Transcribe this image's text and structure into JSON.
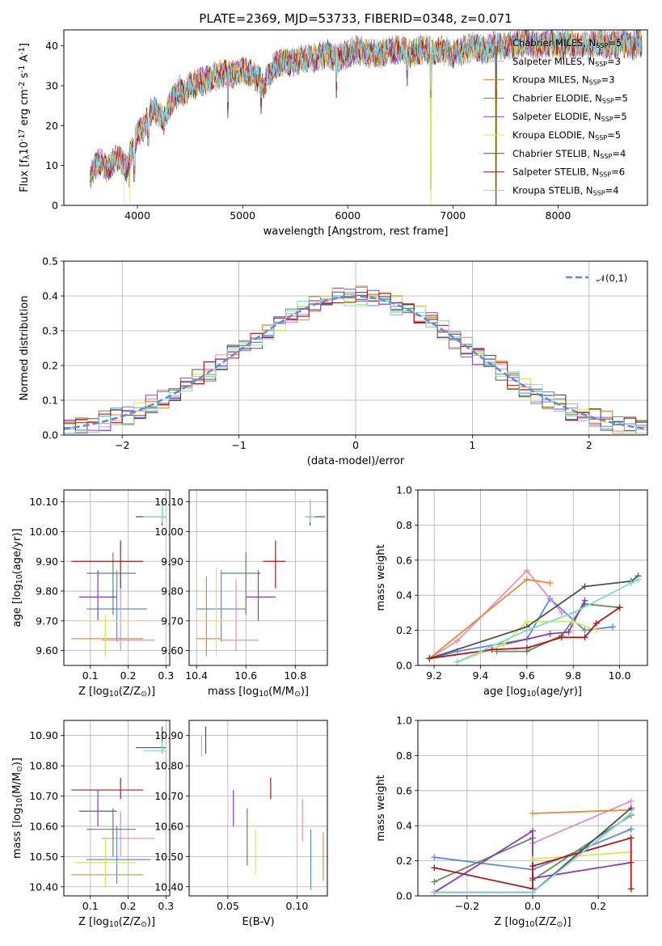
{
  "figure": {
    "title": "PLATE=2369, MJD=53733, FIBERID=0348, z=0.071"
  },
  "models": [
    {
      "name": "Chabrier MILES, N$_{SSP}$=5",
      "label": "Chabrier MILES, N",
      "sub": "SSP",
      "suffix": "=5",
      "color": "#5b8bd9"
    },
    {
      "name": "Salpeter MILES, N$_{SSP}$=3",
      "label": "Salpeter MILES, N",
      "sub": "SSP",
      "suffix": "=3",
      "color": "#e48ec0"
    },
    {
      "name": "Kroupa MILES, N$_{SSP}$=3",
      "label": "Kroupa MILES, N",
      "sub": "SSP",
      "suffix": "=3",
      "color": "#e88a2e"
    },
    {
      "name": "Chabrier ELODIE, N$_{SSP}$=5",
      "label": "Chabrier ELODIE, N",
      "sub": "SSP",
      "suffix": "=5",
      "color": "#5f8a5a"
    },
    {
      "name": "Salpeter ELODIE, N$_{SSP}$=5",
      "label": "Salpeter ELODIE, N",
      "sub": "SSP",
      "suffix": "=5",
      "color": "#8e3ab8"
    },
    {
      "name": "Kroupa ELODIE, N$_{SSP}$=5",
      "label": "Kroupa ELODIE, N",
      "sub": "SSP",
      "suffix": "=5",
      "color": "#d6e95c"
    },
    {
      "name": "Chabrier STELIB, N$_{SSP}$=4",
      "label": "Chabrier STELIB, N",
      "sub": "SSP",
      "suffix": "=4",
      "color": "#505050"
    },
    {
      "name": "Salpeter STELIB, N$_{SSP}$=6",
      "label": "Salpeter STELIB, N",
      "sub": "SSP",
      "suffix": "=6",
      "color": "#b01818"
    },
    {
      "name": "Kroupa STELIB, N$_{SSP}$=4",
      "label": "Kroupa STELIB, N",
      "sub": "SSP",
      "suffix": "=4",
      "color": "#7fd6df"
    }
  ],
  "chart_data": [
    {
      "id": "spectrum",
      "type": "line",
      "title": "PLATE=2369, MJD=53733, FIBERID=0348, z=0.071",
      "xlabel": "wavelength [Angstrom, rest frame]",
      "ylabel": "Flux [f$_\\lambda$10$^{-17}$ erg cm$^{-2}$ s$^{-1}$ A$^{-1}$]",
      "xlim": [
        3300,
        8850
      ],
      "ylim": [
        0,
        44
      ],
      "xticks": [
        4000,
        5000,
        6000,
        7000,
        8000
      ],
      "yticks": [
        0,
        10,
        20,
        30,
        40
      ],
      "grid": false,
      "legend_position": "right",
      "x": [
        3550,
        3600,
        3650,
        3700,
        3750,
        3800,
        3850,
        3900,
        3950,
        4000,
        4050,
        4100,
        4150,
        4200,
        4250,
        4300,
        4350,
        4400,
        4450,
        4500,
        4600,
        4700,
        4800,
        4900,
        5000,
        5100,
        5200,
        5300,
        5400,
        5500,
        5600,
        5700,
        5800,
        5900,
        6000,
        6100,
        6200,
        6300,
        6400,
        6500,
        6600,
        6700,
        6800,
        6900,
        7000,
        7100,
        7200,
        7300,
        7400,
        7500,
        7600,
        7700,
        7800,
        7900,
        8000,
        8100,
        8200,
        8300,
        8400,
        8500,
        8600,
        8700,
        8800
      ],
      "y": [
        7,
        10,
        11,
        9,
        10,
        12,
        11,
        9,
        14,
        18,
        19,
        22,
        24,
        23,
        21,
        25,
        27,
        29,
        28,
        30,
        31,
        32,
        33,
        33,
        34,
        33,
        30,
        35,
        36,
        36,
        37,
        37,
        38,
        37,
        38,
        39,
        38,
        38,
        39,
        39,
        38,
        39,
        39,
        39,
        38,
        39,
        40,
        39,
        40,
        40,
        40,
        41,
        40,
        41,
        40,
        41,
        40,
        40,
        41,
        40,
        41,
        40,
        41
      ],
      "dips": [
        {
          "x": 3920,
          "y": 0.5
        },
        {
          "x": 3970,
          "y": 6
        },
        {
          "x": 4102,
          "y": 15
        },
        {
          "x": 4861,
          "y": 22
        },
        {
          "x": 5175,
          "y": 23
        },
        {
          "x": 5893,
          "y": 27
        },
        {
          "x": 6563,
          "y": 30
        },
        {
          "x": 6790,
          "y": 0
        },
        {
          "x": 7410,
          "y": 0
        }
      ]
    },
    {
      "id": "residual-histogram",
      "type": "histogram",
      "xlabel": "(data-model)/error",
      "ylabel": "Normed distribution",
      "xlim": [
        -2.5,
        2.5
      ],
      "ylim": [
        0,
        0.5
      ],
      "xticks": [
        -2,
        -1,
        0,
        1,
        2
      ],
      "yticks": [
        0.0,
        0.1,
        0.2,
        0.3,
        0.4,
        0.5
      ],
      "grid": true,
      "legend_position": "top-right",
      "reference": {
        "label": "$\\mathcal{N}(0,1)$",
        "color": "#5b8bd9"
      },
      "bin_width": 0.1
    },
    {
      "id": "age-vs-Z",
      "type": "errorbar",
      "xlabel": "Z [log$_{10}$(Z/Z$_\\odot$)]",
      "ylabel": "age  [log$_{10}$(age/yr)]",
      "xlim": [
        0.03,
        0.31
      ],
      "ylim": [
        9.55,
        10.14
      ],
      "xticks": [
        0.1,
        0.2,
        0.3
      ],
      "yticks": [
        9.6,
        9.7,
        9.8,
        9.9,
        10.0,
        10.1
      ],
      "grid": true,
      "points": [
        {
          "m": 0,
          "x": 0.17,
          "y": 9.74,
          "xe": [
            0.09,
            0.25
          ],
          "ye": [
            9.63,
            9.87
          ]
        },
        {
          "m": 1,
          "x": 0.18,
          "y": 9.635,
          "xe": [
            0.13,
            0.27
          ],
          "ye": [
            9.6,
            9.84
          ]
        },
        {
          "m": 2,
          "x": 0.14,
          "y": 9.64,
          "xe": [
            0.05,
            0.24
          ],
          "ye": [
            9.58,
            9.7
          ]
        },
        {
          "m": 3,
          "x": 0.16,
          "y": 9.86,
          "xe": [
            0.09,
            0.22
          ],
          "ye": [
            9.72,
            9.93
          ]
        },
        {
          "m": 4,
          "x": 0.12,
          "y": 9.78,
          "xe": [
            0.07,
            0.17
          ],
          "ye": [
            9.7,
            9.87
          ]
        },
        {
          "m": 5,
          "x": 0.14,
          "y": 9.7,
          "xe": [
            0.06,
            0.22
          ],
          "ye": [
            9.58,
            9.72
          ]
        },
        {
          "m": 6,
          "x": 0.29,
          "y": 10.05,
          "xe": [
            0.22,
            0.3
          ],
          "ye": [
            10.02,
            10.1
          ]
        },
        {
          "m": 7,
          "x": 0.18,
          "y": 9.9,
          "xe": [
            0.05,
            0.24
          ],
          "ye": [
            9.81,
            9.97
          ]
        },
        {
          "m": 8,
          "x": 0.29,
          "y": 10.05,
          "xe": [
            0.24,
            0.3
          ],
          "ye": [
            10.03,
            10.11
          ]
        }
      ]
    },
    {
      "id": "age-vs-mass",
      "type": "errorbar",
      "xlabel": "mass [log$_{10}$(M/M$_\\odot$)]",
      "ylabel": "",
      "xlim": [
        10.37,
        10.93
      ],
      "ylim": [
        9.55,
        10.14
      ],
      "xticks": [
        10.4,
        10.6,
        10.8
      ],
      "yticks": [
        9.6,
        9.7,
        9.8,
        9.9,
        10.0,
        10.1
      ],
      "grid": true,
      "points": [
        {
          "m": 0,
          "x": 10.5,
          "y": 9.74,
          "xe": [
            10.4,
            10.6
          ],
          "ye": [
            9.63,
            9.87
          ]
        },
        {
          "m": 1,
          "x": 10.56,
          "y": 9.635,
          "xe": [
            10.5,
            10.65
          ],
          "ye": [
            9.6,
            9.84
          ]
        },
        {
          "m": 2,
          "x": 10.44,
          "y": 9.64,
          "xe": [
            10.4,
            10.5
          ],
          "ye": [
            9.58,
            9.85
          ]
        },
        {
          "m": 3,
          "x": 10.6,
          "y": 9.86,
          "xe": [
            10.5,
            10.66
          ],
          "ye": [
            9.72,
            9.93
          ]
        },
        {
          "m": 4,
          "x": 10.65,
          "y": 9.78,
          "xe": [
            10.6,
            10.72
          ],
          "ye": [
            9.7,
            9.87
          ]
        },
        {
          "m": 5,
          "x": 10.48,
          "y": 9.7,
          "xe": [
            10.4,
            10.56
          ],
          "ye": [
            9.58,
            9.88
          ]
        },
        {
          "m": 6,
          "x": 10.86,
          "y": 10.05,
          "xe": [
            10.84,
            10.92
          ],
          "ye": [
            10.02,
            10.1
          ]
        },
        {
          "m": 7,
          "x": 10.72,
          "y": 9.9,
          "xe": [
            10.67,
            10.76
          ],
          "ye": [
            9.81,
            9.97
          ]
        },
        {
          "m": 8,
          "x": 10.86,
          "y": 10.05,
          "xe": [
            10.84,
            10.88
          ],
          "ye": [
            10.03,
            10.11
          ]
        }
      ]
    },
    {
      "id": "mass-weight-vs-age",
      "type": "line",
      "xlabel": "age  [log$_{10}$(age/yr)]",
      "ylabel": "mass weight",
      "xlim": [
        9.13,
        10.12
      ],
      "ylim": [
        0,
        1.0
      ],
      "xticks": [
        9.2,
        9.4,
        9.6,
        9.8,
        10.0
      ],
      "yticks": [
        0.0,
        0.2,
        0.4,
        0.6,
        0.8,
        1.0
      ],
      "grid": true,
      "series": [
        {
          "m": 0,
          "x": [
            9.18,
            9.3,
            9.6,
            9.7,
            9.85,
            9.97
          ],
          "y": [
            0.04,
            0.08,
            0.15,
            0.38,
            0.2,
            0.22
          ]
        },
        {
          "m": 1,
          "x": [
            9.18,
            9.3,
            9.6,
            9.75
          ],
          "y": [
            0.04,
            0.14,
            0.54,
            0.3
          ]
        },
        {
          "m": 2,
          "x": [
            9.18,
            9.6,
            9.7
          ],
          "y": [
            0.04,
            0.49,
            0.47
          ]
        },
        {
          "m": 3,
          "x": [
            9.47,
            9.6,
            9.75,
            9.85,
            10.0
          ],
          "y": [
            0.08,
            0.08,
            0.17,
            0.35,
            0.33
          ]
        },
        {
          "m": 4,
          "x": [
            9.3,
            9.5,
            9.7,
            9.78,
            9.85
          ],
          "y": [
            0.02,
            0.12,
            0.18,
            0.19,
            0.37
          ]
        },
        {
          "m": 5,
          "x": [
            9.3,
            9.5,
            9.6,
            9.8,
            9.9
          ],
          "y": [
            0.02,
            0.12,
            0.25,
            0.25,
            0.2
          ]
        },
        {
          "m": 6,
          "x": [
            9.18,
            9.6,
            9.85,
            10.05,
            10.08
          ],
          "y": [
            0.04,
            0.22,
            0.45,
            0.48,
            0.51
          ]
        },
        {
          "m": 7,
          "x": [
            9.18,
            9.45,
            9.6,
            9.75,
            9.85,
            9.9,
            10.0
          ],
          "y": [
            0.04,
            0.09,
            0.1,
            0.16,
            0.16,
            0.24,
            0.33
          ]
        },
        {
          "m": 8,
          "x": [
            9.3,
            9.6,
            9.8,
            10.05,
            10.08
          ],
          "y": [
            0.02,
            0.2,
            0.3,
            0.47,
            0.49
          ]
        }
      ]
    },
    {
      "id": "mass-vs-Z",
      "type": "errorbar",
      "xlabel": "Z [log$_{10}$(Z/Z$_\\odot$)]",
      "ylabel": "mass [log$_{10}$(M/M$_\\odot$)]",
      "xlim": [
        0.03,
        0.31
      ],
      "ylim": [
        10.37,
        10.95
      ],
      "xticks": [
        0.1,
        0.2,
        0.3
      ],
      "yticks": [
        10.4,
        10.5,
        10.6,
        10.7,
        10.8,
        10.9
      ],
      "grid": true,
      "points": [
        {
          "m": 0,
          "x": 0.17,
          "y": 10.49,
          "xe": [
            0.09,
            0.26
          ],
          "ye": [
            10.41,
            10.6
          ]
        },
        {
          "m": 1,
          "x": 0.18,
          "y": 10.56,
          "xe": [
            0.13,
            0.27
          ],
          "ye": [
            10.5,
            10.65
          ]
        },
        {
          "m": 2,
          "x": 0.14,
          "y": 10.44,
          "xe": [
            0.05,
            0.24
          ],
          "ye": [
            10.4,
            10.5
          ]
        },
        {
          "m": 3,
          "x": 0.16,
          "y": 10.59,
          "xe": [
            0.09,
            0.22
          ],
          "ye": [
            10.5,
            10.66
          ]
        },
        {
          "m": 4,
          "x": 0.12,
          "y": 10.65,
          "xe": [
            0.07,
            0.17
          ],
          "ye": [
            10.6,
            10.72
          ]
        },
        {
          "m": 5,
          "x": 0.14,
          "y": 10.48,
          "xe": [
            0.06,
            0.22
          ],
          "ye": [
            10.4,
            10.56
          ]
        },
        {
          "m": 6,
          "x": 0.29,
          "y": 10.86,
          "xe": [
            0.22,
            0.3
          ],
          "ye": [
            10.84,
            10.93
          ]
        },
        {
          "m": 7,
          "x": 0.18,
          "y": 10.72,
          "xe": [
            0.05,
            0.24
          ],
          "ye": [
            10.69,
            10.76
          ]
        },
        {
          "m": 8,
          "x": 0.29,
          "y": 10.85,
          "xe": [
            0.24,
            0.3
          ],
          "ye": [
            10.84,
            10.88
          ]
        }
      ]
    },
    {
      "id": "mass-vs-EBV",
      "type": "errorbar",
      "xlabel": "E(B-V)",
      "ylabel": "",
      "xlim": [
        0.022,
        0.122
      ],
      "ylim": [
        10.37,
        10.95
      ],
      "xticks": [
        0.05,
        0.1
      ],
      "yticks": [
        10.4,
        10.5,
        10.6,
        10.7,
        10.8,
        10.9
      ],
      "grid": true,
      "points": [
        {
          "m": 0,
          "x": 0.11,
          "y": 10.49,
          "xe": [
            0.11,
            0.11
          ],
          "ye": [
            10.39,
            10.59
          ]
        },
        {
          "m": 1,
          "x": 0.104,
          "y": 10.61,
          "xe": [
            0.104,
            0.104
          ],
          "ye": [
            10.55,
            10.69
          ]
        },
        {
          "m": 2,
          "x": 0.119,
          "y": 10.49,
          "xe": [
            0.119,
            0.119
          ],
          "ye": [
            10.42,
            10.58
          ]
        },
        {
          "m": 3,
          "x": 0.064,
          "y": 10.56,
          "xe": [
            0.064,
            0.064
          ],
          "ye": [
            10.47,
            10.66
          ]
        },
        {
          "m": 4,
          "x": 0.054,
          "y": 10.66,
          "xe": [
            0.054,
            0.054
          ],
          "ye": [
            10.6,
            10.72
          ]
        },
        {
          "m": 5,
          "x": 0.07,
          "y": 10.51,
          "xe": [
            0.07,
            0.07
          ],
          "ye": [
            10.44,
            10.59
          ]
        },
        {
          "m": 6,
          "x": 0.034,
          "y": 10.88,
          "xe": [
            0.034,
            0.034
          ],
          "ye": [
            10.84,
            10.93
          ]
        },
        {
          "m": 7,
          "x": 0.081,
          "y": 10.72,
          "xe": [
            0.081,
            0.081
          ],
          "ye": [
            10.69,
            10.76
          ]
        },
        {
          "m": 8,
          "x": 0.031,
          "y": 10.86,
          "xe": [
            0.031,
            0.031
          ],
          "ye": [
            10.83,
            10.9
          ]
        }
      ]
    },
    {
      "id": "mass-weight-vs-Z",
      "type": "line",
      "xlabel": "Z [log$_{10}$(Z/Z$_\\odot$)]",
      "ylabel": "mass weight",
      "xlim": [
        -0.35,
        0.35
      ],
      "ylim": [
        0,
        1.0
      ],
      "xticks": [
        -0.2,
        0.0,
        0.2
      ],
      "yticks": [
        0.0,
        0.2,
        0.4,
        0.6,
        0.8,
        1.0
      ],
      "grid": true,
      "series": [
        {
          "m": 0,
          "x": [
            -0.3,
            0.0,
            0.3
          ],
          "y": [
            0.22,
            0.15,
            0.38
          ]
        },
        {
          "m": 1,
          "x": [
            0.0,
            0.3
          ],
          "y": [
            0.3,
            0.54
          ]
        },
        {
          "m": 2,
          "x": [
            0.0,
            0.3
          ],
          "y": [
            0.47,
            0.49
          ]
        },
        {
          "m": 3,
          "x": [
            -0.3,
            0.0,
            0.0,
            0.3
          ],
          "y": [
            0.08,
            0.33,
            0.09,
            0.46
          ]
        },
        {
          "m": 4,
          "x": [
            -0.3,
            0.0,
            0.0,
            0.3
          ],
          "y": [
            0.02,
            0.37,
            0.1,
            0.19
          ]
        },
        {
          "m": 5,
          "x": [
            0.0,
            0.3,
            0.3
          ],
          "y": [
            0.21,
            0.25,
            0.2
          ]
        },
        {
          "m": 6,
          "x": [
            -0.3,
            0.0,
            0.3
          ],
          "y": [
            0.02,
            0.02,
            0.5
          ]
        },
        {
          "m": 7,
          "x": [
            -0.3,
            0.0,
            0.0,
            0.3,
            0.3
          ],
          "y": [
            0.16,
            0.04,
            0.17,
            0.33,
            0.04
          ]
        },
        {
          "m": 8,
          "x": [
            -0.3,
            0.0,
            0.3
          ],
          "y": [
            0.02,
            0.02,
            0.47
          ]
        }
      ]
    }
  ]
}
